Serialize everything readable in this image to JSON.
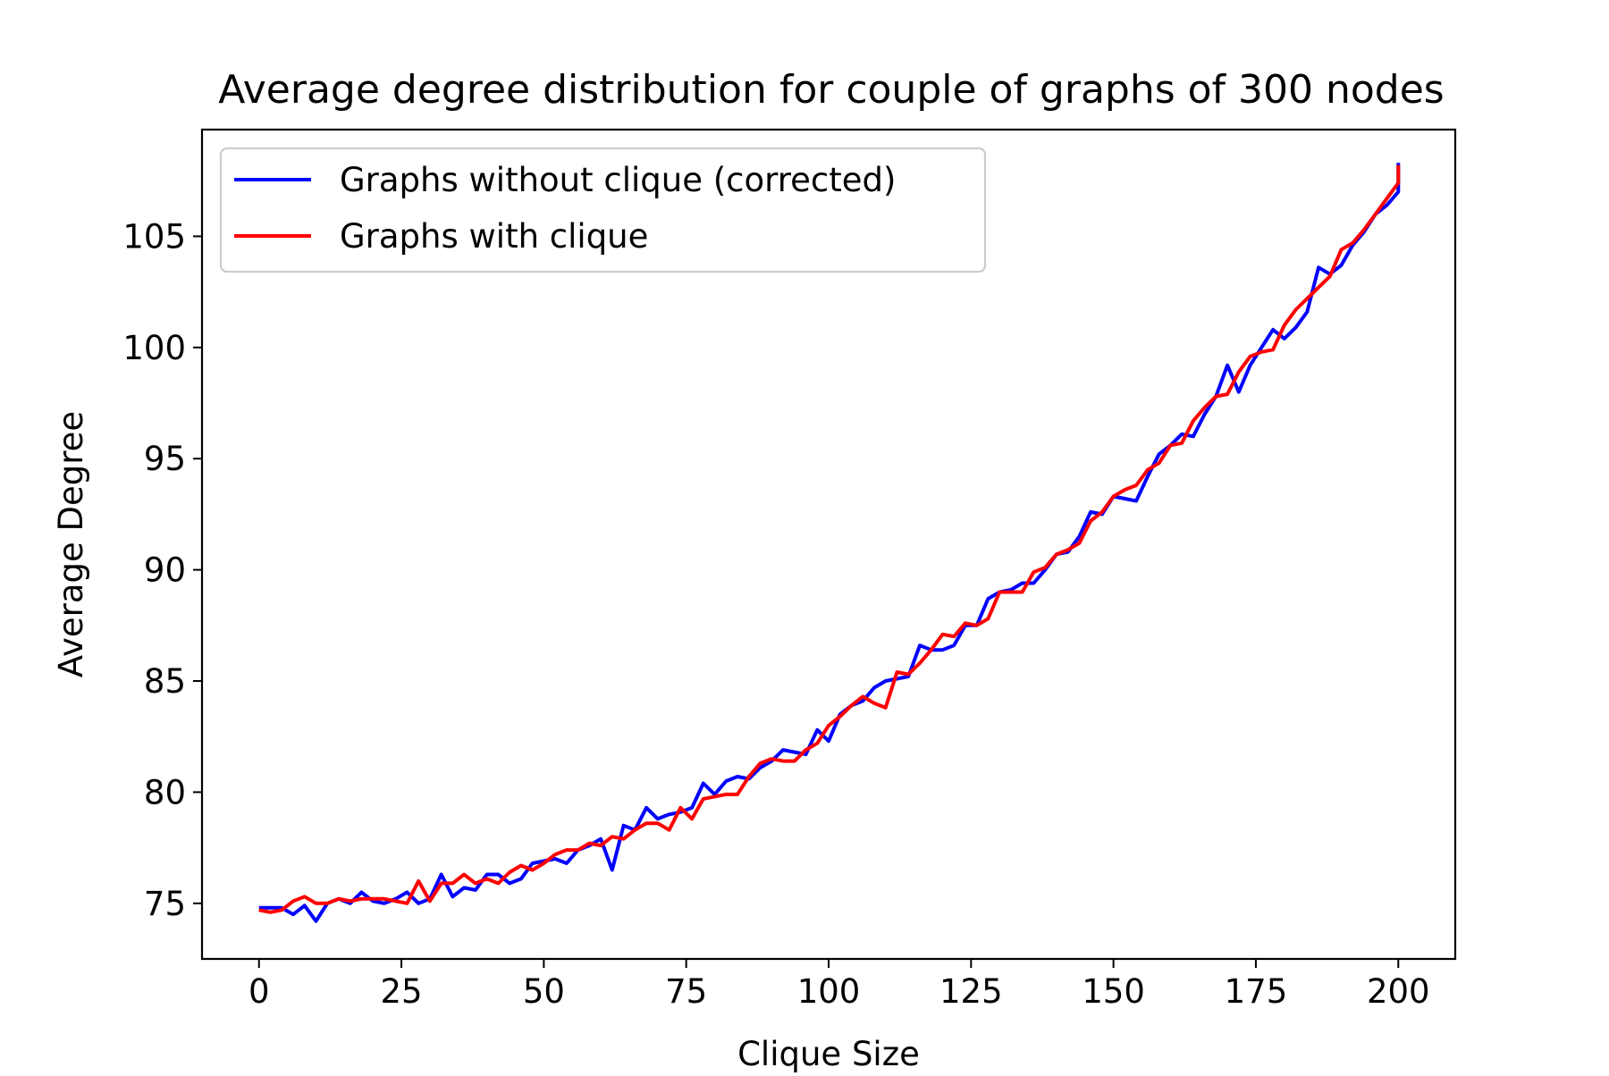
{
  "chart_data": {
    "type": "line",
    "title": "Average degree distribution for couple of graphs of 300 nodes",
    "xlabel": "Clique Size",
    "ylabel": "Average Degree",
    "xlim": [
      -10,
      210
    ],
    "ylim": [
      72.5,
      109.8
    ],
    "xticks": [
      0,
      25,
      50,
      75,
      100,
      125,
      150,
      175,
      200
    ],
    "yticks": [
      75,
      80,
      85,
      90,
      95,
      100,
      105
    ],
    "grid": false,
    "legend_position": "upper-left",
    "series": [
      {
        "name": "Graphs without clique (corrected)",
        "color": "#0000ff",
        "x": [
          0,
          2,
          4,
          6,
          8,
          10,
          12,
          14,
          16,
          18,
          20,
          22,
          24,
          26,
          28,
          30,
          32,
          34,
          36,
          38,
          40,
          42,
          44,
          46,
          48,
          50,
          52,
          54,
          56,
          58,
          60,
          62,
          64,
          66,
          68,
          70,
          72,
          74,
          76,
          78,
          80,
          82,
          84,
          86,
          88,
          90,
          92,
          94,
          96,
          98,
          100,
          102,
          104,
          106,
          108,
          110,
          112,
          114,
          116,
          118,
          120,
          122,
          124,
          126,
          128,
          130,
          132,
          134,
          136,
          138,
          140,
          142,
          144,
          146,
          148,
          150,
          152,
          154,
          156,
          158,
          160,
          162,
          164,
          166,
          168,
          170,
          172,
          174,
          176,
          178,
          180,
          182,
          184,
          186,
          188,
          190,
          192,
          194,
          196,
          198,
          200
        ],
        "y": [
          74.8,
          74.8,
          74.8,
          74.5,
          74.9,
          74.2,
          75.0,
          75.2,
          75.0,
          75.5,
          75.1,
          75.0,
          75.2,
          75.5,
          75.0,
          75.2,
          76.3,
          75.3,
          75.7,
          75.6,
          76.3,
          76.3,
          75.9,
          76.1,
          76.8,
          76.9,
          77.0,
          76.8,
          77.4,
          77.6,
          77.9,
          76.5,
          78.5,
          78.3,
          79.3,
          78.8,
          79.0,
          79.1,
          79.3,
          80.4,
          79.9,
          80.5,
          80.7,
          80.6,
          81.1,
          81.4,
          81.9,
          81.8,
          81.7,
          82.8,
          82.3,
          83.5,
          83.9,
          84.1,
          84.7,
          85.0,
          85.1,
          85.2,
          86.6,
          86.4,
          86.4,
          86.6,
          87.5,
          87.5,
          88.7,
          89.0,
          89.1,
          89.4,
          89.4,
          90.0,
          90.7,
          90.8,
          91.5,
          92.6,
          92.5,
          93.3,
          93.2,
          93.1,
          94.2,
          95.2,
          95.6,
          96.1,
          96.0,
          97.0,
          97.8,
          99.2,
          98.0,
          99.2,
          100.0,
          100.8,
          100.4,
          100.9,
          101.6,
          103.6,
          103.3,
          103.7,
          104.6,
          105.2,
          106.0,
          106.4,
          107.0
        ],
        "y_end": 108.3
      },
      {
        "name": "Graphs with clique",
        "color": "#ff0000",
        "x": [
          0,
          2,
          4,
          6,
          8,
          10,
          12,
          14,
          16,
          18,
          20,
          22,
          24,
          26,
          28,
          30,
          32,
          34,
          36,
          38,
          40,
          42,
          44,
          46,
          48,
          50,
          52,
          54,
          56,
          58,
          60,
          62,
          64,
          66,
          68,
          70,
          72,
          74,
          76,
          78,
          80,
          82,
          84,
          86,
          88,
          90,
          92,
          94,
          96,
          98,
          100,
          102,
          104,
          106,
          108,
          110,
          112,
          114,
          116,
          118,
          120,
          122,
          124,
          126,
          128,
          130,
          132,
          134,
          136,
          138,
          140,
          142,
          144,
          146,
          148,
          150,
          152,
          154,
          156,
          158,
          160,
          162,
          164,
          166,
          168,
          170,
          172,
          174,
          176,
          178,
          180,
          182,
          184,
          186,
          188,
          190,
          192,
          194,
          196,
          198,
          200
        ],
        "y": [
          74.7,
          74.6,
          74.7,
          75.1,
          75.3,
          75.0,
          75.0,
          75.2,
          75.1,
          75.2,
          75.2,
          75.2,
          75.1,
          75.0,
          76.0,
          75.1,
          75.9,
          75.9,
          76.3,
          75.9,
          76.1,
          75.9,
          76.4,
          76.7,
          76.5,
          76.8,
          77.2,
          77.4,
          77.4,
          77.7,
          77.6,
          78.0,
          77.9,
          78.3,
          78.6,
          78.6,
          78.3,
          79.3,
          78.8,
          79.7,
          79.8,
          79.9,
          79.9,
          80.7,
          81.3,
          81.5,
          81.4,
          81.4,
          81.9,
          82.2,
          83.0,
          83.4,
          83.9,
          84.3,
          84.0,
          83.8,
          85.4,
          85.3,
          85.8,
          86.4,
          87.1,
          87.0,
          87.6,
          87.5,
          87.8,
          89.0,
          89.0,
          89.0,
          89.9,
          90.1,
          90.7,
          90.9,
          91.2,
          92.2,
          92.6,
          93.3,
          93.6,
          93.8,
          94.5,
          94.8,
          95.6,
          95.7,
          96.7,
          97.3,
          97.8,
          97.9,
          98.9,
          99.6,
          99.8,
          99.9,
          101.0,
          101.7,
          102.2,
          102.7,
          103.2,
          104.4,
          104.7,
          105.3,
          106.0,
          106.7,
          107.4
        ],
        "y_end": 108.2
      }
    ]
  }
}
